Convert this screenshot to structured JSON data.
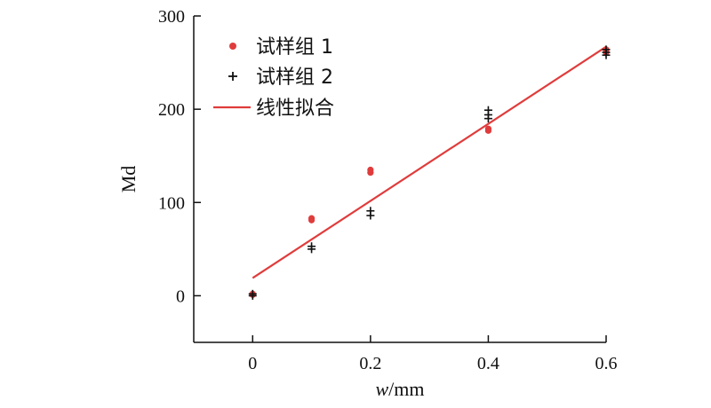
{
  "chart_data": {
    "type": "scatter",
    "xlabel": "w/mm",
    "xlabel_italic": "w",
    "xlabel_unit": "/mm",
    "ylabel": "Md",
    "xlim": [
      -0.1,
      0.6
    ],
    "ylim": [
      -50,
      300
    ],
    "xticks": [
      0,
      0.2,
      0.4,
      0.6
    ],
    "xtick_labels": [
      "0",
      "0.2",
      "0.4",
      "0.6"
    ],
    "yticks": [
      0,
      100,
      200,
      300
    ],
    "ytick_labels": [
      "0",
      "100",
      "200",
      "300"
    ],
    "grid": false,
    "legend_position": "top-left",
    "series": [
      {
        "name": "试样组 1",
        "marker": "dot",
        "color": "#e03c3c",
        "points": [
          {
            "x": 0,
            "y": 1
          },
          {
            "x": 0,
            "y": 2
          },
          {
            "x": 0.1,
            "y": 81
          },
          {
            "x": 0.1,
            "y": 83
          },
          {
            "x": 0.2,
            "y": 132
          },
          {
            "x": 0.2,
            "y": 135
          },
          {
            "x": 0.4,
            "y": 177
          },
          {
            "x": 0.4,
            "y": 179
          },
          {
            "x": 0.6,
            "y": 261
          },
          {
            "x": 0.6,
            "y": 264
          }
        ]
      },
      {
        "name": "试样组 2",
        "marker": "plus",
        "color": "#111111",
        "points": [
          {
            "x": 0,
            "y": 0
          },
          {
            "x": 0,
            "y": 2
          },
          {
            "x": 0.1,
            "y": 50
          },
          {
            "x": 0.1,
            "y": 53
          },
          {
            "x": 0.2,
            "y": 86
          },
          {
            "x": 0.2,
            "y": 91
          },
          {
            "x": 0.4,
            "y": 190
          },
          {
            "x": 0.4,
            "y": 194
          },
          {
            "x": 0.4,
            "y": 199
          },
          {
            "x": 0.6,
            "y": 258
          },
          {
            "x": 0.6,
            "y": 261
          },
          {
            "x": 0.6,
            "y": 264
          }
        ]
      }
    ],
    "fit": {
      "name": "线性拟合",
      "color": "#e03c3c",
      "x": [
        0,
        0.6
      ],
      "y": [
        19,
        267
      ]
    }
  }
}
